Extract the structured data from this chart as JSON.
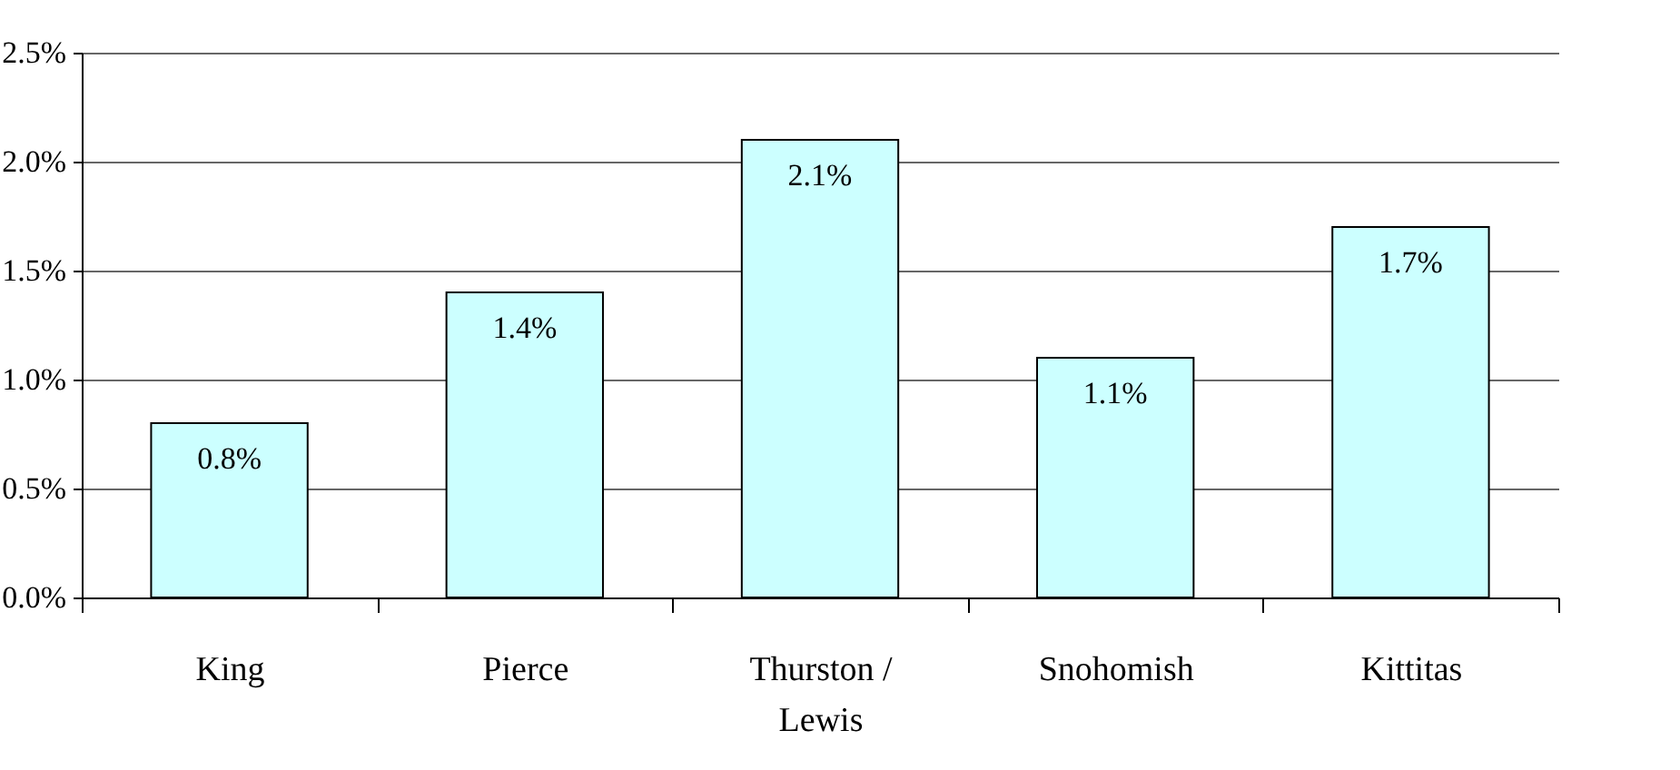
{
  "chart_data": {
    "type": "bar",
    "categories": [
      "King",
      "Pierce",
      "Thurston / Lewis",
      "Snohomish",
      "Kittitas"
    ],
    "values": [
      0.8,
      1.4,
      2.1,
      1.1,
      1.7
    ],
    "value_labels": [
      "0.8%",
      "1.4%",
      "2.1%",
      "1.1%",
      "1.7%"
    ],
    "color": "#ccffff",
    "ylim": [
      0,
      2.5
    ],
    "yticks": [
      {
        "value": 0,
        "label": "0.0%"
      },
      {
        "value": 0.5,
        "label": "0.5%"
      },
      {
        "value": 1,
        "label": "1.0%"
      },
      {
        "value": 1.5,
        "label": "1.5%"
      },
      {
        "value": 2,
        "label": "2.0%"
      },
      {
        "value": 2.5,
        "label": "2.5%"
      }
    ],
    "grid": "y"
  }
}
